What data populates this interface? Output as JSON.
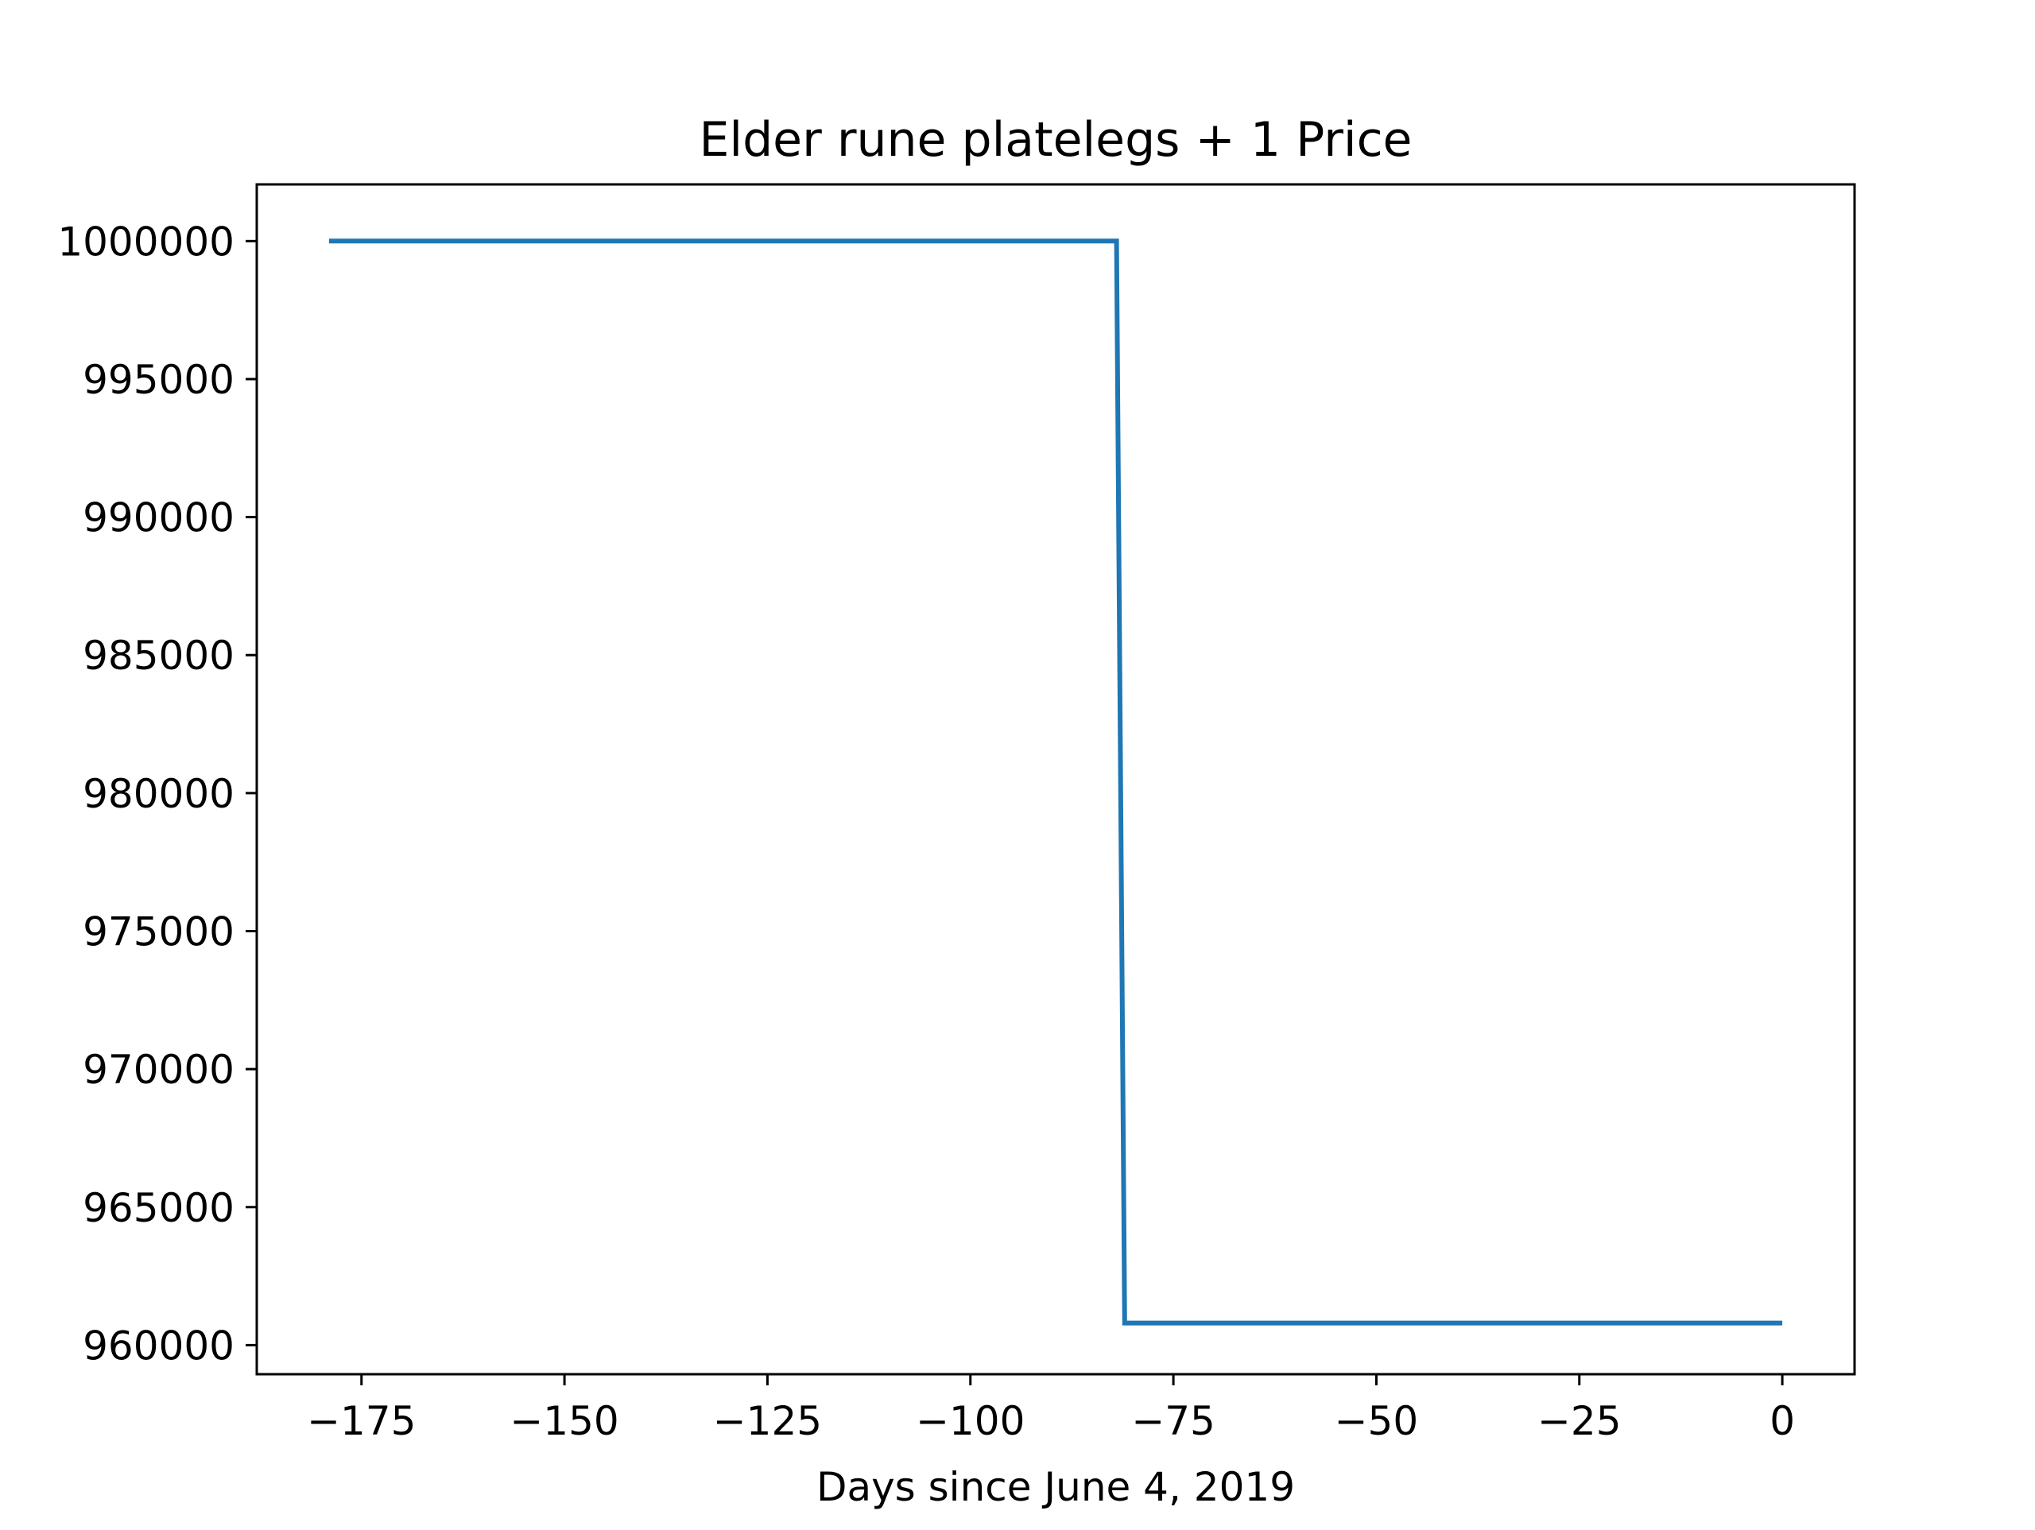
{
  "chart_data": {
    "type": "line",
    "title": "Elder rune platelegs + 1 Price",
    "xlabel": "Days since June 4, 2019",
    "ylabel": "",
    "xlim": [
      -187.9,
      8.9
    ],
    "ylim": [
      958946,
      1002054
    ],
    "grid": false,
    "legend": "none",
    "x_ticks": [
      -175,
      -150,
      -125,
      -100,
      -75,
      -50,
      -25,
      0
    ],
    "y_ticks": [
      960000,
      965000,
      970000,
      975000,
      980000,
      985000,
      990000,
      995000,
      1000000
    ],
    "series": [
      {
        "color": "#1f77b4",
        "x": [
          -179,
          -82,
          -81,
          0
        ],
        "y": [
          1000000,
          1000000,
          960800,
          960800
        ]
      }
    ]
  }
}
